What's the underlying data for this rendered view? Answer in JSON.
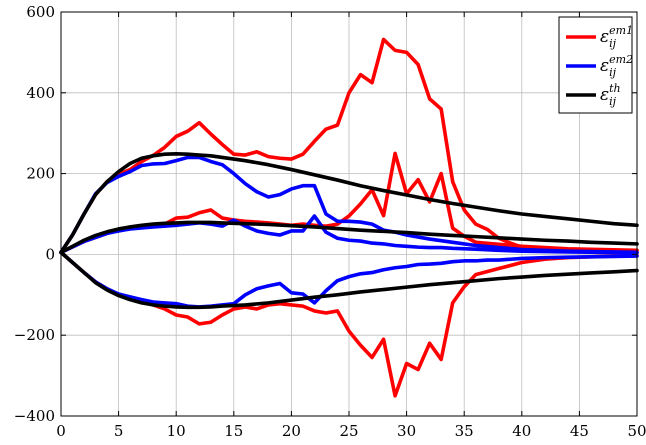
{
  "chart_data": {
    "type": "line",
    "title": "",
    "xlabel": "",
    "ylabel": "",
    "xlim": [
      0,
      50
    ],
    "ylim": [
      -400,
      600
    ],
    "xticks": [
      0,
      5,
      10,
      15,
      20,
      25,
      30,
      35,
      40,
      45,
      50
    ],
    "yticks": [
      -400,
      -200,
      0,
      200,
      400,
      600
    ],
    "xtick_labels": [
      "0",
      "5",
      "10",
      "15",
      "20",
      "25",
      "30",
      "35",
      "40",
      "45",
      "50"
    ],
    "ytick_labels": [
      "−400",
      "−200",
      "0",
      "200",
      "400",
      "600"
    ],
    "grid": true,
    "legend_position": "top-right",
    "series": [
      {
        "name": "ε_ij^em1",
        "label_base": "ε",
        "label_sub": "ij",
        "label_sup": "em1",
        "color": "#ff0000",
        "curves": [
          {
            "x": [
              0,
              1,
              2,
              3,
              4,
              5,
              6,
              7,
              8,
              9,
              10,
              11,
              12,
              13,
              14,
              15,
              16,
              17,
              18,
              19,
              20,
              21,
              22,
              23,
              24,
              25,
              26,
              27,
              28,
              29,
              30,
              31,
              32,
              33,
              34,
              35,
              36,
              37,
              38,
              39,
              40,
              42,
              44,
              46,
              48,
              50
            ],
            "y": [
              5,
              48,
              100,
              148,
              180,
              198,
              210,
              230,
              245,
              265,
              292,
              305,
              326,
              298,
              272,
              248,
              246,
              254,
              242,
              238,
              236,
              248,
              280,
              310,
              320,
              400,
              445,
              425,
              532,
              505,
              500,
              470,
              385,
              360,
              180,
              110,
              75,
              62,
              40,
              28,
              18,
              12,
              10,
              9,
              8,
              6
            ]
          },
          {
            "x": [
              0,
              2,
              4,
              5,
              6,
              8,
              9,
              10,
              11,
              12,
              13,
              14,
              15,
              16,
              17,
              18,
              19,
              20,
              21,
              22,
              23,
              24,
              25,
              26,
              27,
              28,
              29,
              30,
              31,
              32,
              33,
              34,
              35,
              36,
              38,
              40,
              44,
              50
            ],
            "y": [
              5,
              32,
              52,
              60,
              65,
              72,
              75,
              90,
              92,
              103,
              110,
              90,
              85,
              82,
              80,
              78,
              75,
              72,
              75,
              72,
              70,
              75,
              95,
              125,
              160,
              96,
              250,
              150,
              185,
              130,
              200,
              65,
              45,
              30,
              25,
              20,
              14,
              10
            ]
          },
          {
            "x": [
              0,
              1,
              2,
              3,
              4,
              5,
              6,
              7,
              8,
              9,
              10,
              11,
              12,
              13,
              14,
              15,
              16,
              17,
              18,
              19,
              20,
              21,
              22,
              23,
              24,
              25,
              26,
              27,
              28,
              29,
              30,
              31,
              32,
              33,
              34,
              35,
              36,
              38,
              40,
              42,
              44,
              46,
              48,
              50
            ],
            "y": [
              5,
              -20,
              -45,
              -68,
              -85,
              -100,
              -108,
              -115,
              -125,
              -135,
              -150,
              -155,
              -172,
              -168,
              -150,
              -135,
              -130,
              -135,
              -125,
              -122,
              -125,
              -128,
              -140,
              -145,
              -140,
              -190,
              -225,
              -255,
              -210,
              -350,
              -270,
              -285,
              -220,
              -260,
              -120,
              -80,
              -50,
              -35,
              -20,
              -12,
              -8,
              -6,
              -4,
              -3
            ]
          }
        ]
      },
      {
        "name": "ε_ij^em2",
        "label_base": "ε",
        "label_sub": "ij",
        "label_sup": "em2",
        "color": "#0000ff",
        "curves": [
          {
            "x": [
              0,
              1,
              2,
              3,
              4,
              5,
              6,
              7,
              8,
              9,
              10,
              11,
              12,
              13,
              14,
              15,
              16,
              17,
              18,
              19,
              20,
              21,
              22,
              23,
              24,
              25,
              26,
              27,
              28,
              29,
              30,
              32,
              34,
              36,
              38,
              40,
              44,
              50
            ],
            "y": [
              5,
              48,
              100,
              150,
              178,
              193,
              205,
              220,
              224,
              225,
              232,
              240,
              240,
              230,
              222,
              200,
              175,
              155,
              142,
              148,
              162,
              170,
              170,
              100,
              82,
              82,
              80,
              75,
              60,
              55,
              48,
              38,
              30,
              22,
              17,
              12,
              8,
              5
            ]
          },
          {
            "x": [
              0,
              2,
              4,
              5,
              6,
              8,
              10,
              12,
              13,
              14,
              15,
              16,
              17,
              18,
              19,
              20,
              21,
              22,
              23,
              24,
              25,
              26,
              27,
              28,
              29,
              30,
              31,
              32,
              33,
              34,
              36,
              38,
              40,
              44,
              50
            ],
            "y": [
              5,
              32,
              52,
              58,
              63,
              68,
              72,
              78,
              75,
              70,
              85,
              70,
              58,
              52,
              48,
              58,
              58,
              95,
              55,
              40,
              35,
              33,
              28,
              26,
              22,
              20,
              18,
              17,
              17,
              15,
              13,
              10,
              8,
              6,
              4
            ]
          },
          {
            "x": [
              0,
              1,
              2,
              3,
              4,
              5,
              6,
              7,
              8,
              9,
              10,
              11,
              12,
              13,
              14,
              15,
              16,
              17,
              18,
              19,
              20,
              21,
              22,
              23,
              24,
              25,
              26,
              27,
              28,
              29,
              30,
              31,
              32,
              33,
              34,
              35,
              36,
              37,
              38,
              39,
              40,
              42,
              44,
              46,
              48,
              50
            ],
            "y": [
              5,
              -20,
              -45,
              -68,
              -85,
              -98,
              -105,
              -112,
              -118,
              -120,
              -122,
              -128,
              -130,
              -128,
              -125,
              -122,
              -100,
              -85,
              -78,
              -72,
              -95,
              -98,
              -120,
              -90,
              -65,
              -55,
              -48,
              -45,
              -38,
              -33,
              -30,
              -25,
              -24,
              -22,
              -18,
              -16,
              -16,
              -14,
              -14,
              -12,
              -10,
              -8,
              -7,
              -6,
              -5,
              -4
            ]
          }
        ]
      },
      {
        "name": "ε_ij^th",
        "label_base": "ε",
        "label_sub": "ij",
        "label_sup": "th",
        "color": "#000000",
        "curves": [
          {
            "x": [
              0,
              1,
              2,
              3,
              4,
              5,
              6,
              7,
              8,
              9,
              10,
              11,
              12,
              13,
              14,
              16,
              18,
              20,
              22,
              24,
              26,
              28,
              30,
              32,
              34,
              36,
              38,
              40,
              42,
              44,
              46,
              48,
              50
            ],
            "y": [
              5,
              48,
              100,
              148,
              180,
              205,
              225,
              238,
              244,
              248,
              249,
              248,
              246,
              244,
              240,
              232,
              222,
              210,
              197,
              184,
              170,
              158,
              147,
              136,
              126,
              117,
              108,
              100,
              94,
              88,
              82,
              76,
              72
            ]
          },
          {
            "x": [
              0,
              1,
              2,
              3,
              4,
              5,
              6,
              7,
              8,
              9,
              10,
              11,
              12,
              13,
              14,
              16,
              18,
              20,
              22,
              24,
              26,
              28,
              30,
              32,
              34,
              36,
              38,
              40,
              42,
              44,
              46,
              48,
              50
            ],
            "y": [
              5,
              20,
              35,
              47,
              56,
              63,
              68,
              72,
              75,
              77,
              78,
              79,
              79,
              79,
              78,
              76,
              74,
              71,
              68,
              64,
              60,
              57,
              54,
              50,
              47,
              44,
              41,
              38,
              35,
              33,
              30,
              28,
              26
            ]
          },
          {
            "x": [
              0,
              1,
              2,
              3,
              4,
              5,
              6,
              7,
              8,
              9,
              10,
              11,
              12,
              13,
              14,
              16,
              18,
              20,
              22,
              24,
              26,
              28,
              30,
              32,
              34,
              36,
              38,
              40,
              42,
              44,
              46,
              48,
              50
            ],
            "y": [
              5,
              -20,
              -45,
              -70,
              -88,
              -102,
              -112,
              -120,
              -125,
              -128,
              -130,
              -131,
              -131,
              -130,
              -128,
              -125,
              -120,
              -113,
              -106,
              -100,
              -93,
              -87,
              -81,
              -75,
              -70,
              -65,
              -60,
              -56,
              -52,
              -49,
              -46,
              -43,
              -40
            ]
          }
        ]
      }
    ]
  }
}
